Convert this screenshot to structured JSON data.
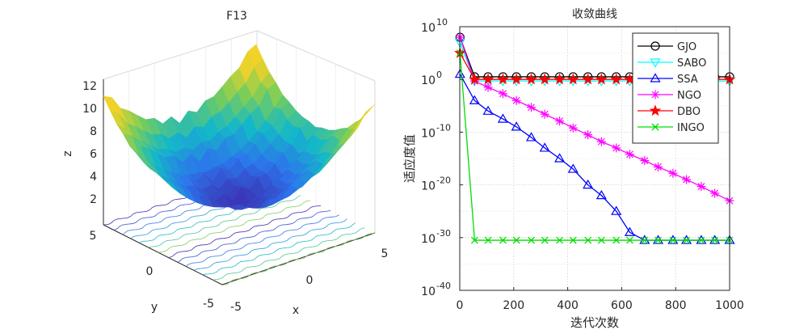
{
  "chart_data": [
    {
      "type": "surface",
      "title": "F13",
      "xlabel": "x",
      "ylabel": "y",
      "zlabel": "z",
      "xlim": [
        -5,
        5
      ],
      "ylim": [
        -5,
        5
      ],
      "zlim": [
        0,
        13
      ],
      "x_ticks": [
        "-5",
        "0",
        "5"
      ],
      "y_ticks": [
        "-5",
        "0",
        "5"
      ],
      "z_ticks": [
        "2",
        "4",
        "6",
        "8",
        "10",
        "12"
      ],
      "contour_projection": true
    },
    {
      "type": "line",
      "title": "收敛曲线",
      "xlabel": "迭代次数",
      "ylabel": "适应度值",
      "xlim": [
        0,
        1000
      ],
      "ylim_exponent": [
        -40,
        10
      ],
      "yscale": "log",
      "grid": true,
      "legend_position": "top-right",
      "x_ticks": [
        "0",
        "200",
        "400",
        "600",
        "800",
        "1000"
      ],
      "y_tick_base": "10",
      "y_tick_exponents": [
        "10",
        "0",
        "-10",
        "-20",
        "-30",
        "-40"
      ],
      "series": [
        {
          "name": "GJO",
          "color": "#000000",
          "marker": "circle",
          "x": [
            1,
            55,
            105,
            160,
            210,
            265,
            315,
            370,
            420,
            475,
            525,
            580,
            630,
            685,
            735,
            790,
            840,
            895,
            945,
            1000
          ],
          "log10_y": [
            8,
            0.5,
            0.5,
            0.5,
            0.5,
            0.5,
            0.5,
            0.5,
            0.5,
            0.5,
            0.5,
            0.5,
            0.5,
            0.5,
            0.5,
            0.5,
            0.5,
            0.5,
            0.5,
            0.5
          ]
        },
        {
          "name": "SABO",
          "color": "#00FFFF",
          "marker": "triangle-down",
          "x": [
            1,
            55,
            105,
            160,
            210,
            265,
            315,
            370,
            420,
            475,
            525,
            580,
            630,
            685,
            735,
            790,
            840,
            895,
            945,
            1000
          ],
          "log10_y": [
            7,
            -0.3,
            -0.3,
            -0.3,
            -0.3,
            -0.3,
            -0.3,
            -0.3,
            -0.3,
            -0.3,
            -0.3,
            -0.3,
            -0.3,
            -0.3,
            -0.3,
            -0.3,
            -0.3,
            -0.3,
            -0.3,
            -0.3
          ]
        },
        {
          "name": "SSA",
          "color": "#0000FF",
          "marker": "triangle-up",
          "x": [
            1,
            55,
            105,
            160,
            210,
            265,
            315,
            370,
            420,
            475,
            525,
            580,
            630,
            685,
            735,
            790,
            840,
            895,
            945,
            1000
          ],
          "log10_y": [
            1,
            -4,
            -6,
            -7.5,
            -9,
            -11,
            -13,
            -15,
            -17,
            -20,
            -22,
            -25,
            -29,
            -30.5,
            -30.5,
            -30.5,
            -30.5,
            -30.5,
            -30.5,
            -30.5
          ]
        },
        {
          "name": "NGO",
          "color": "#FF00FF",
          "marker": "asterisk",
          "x": [
            1,
            55,
            105,
            160,
            210,
            265,
            315,
            370,
            420,
            475,
            525,
            580,
            630,
            685,
            735,
            790,
            840,
            895,
            945,
            1000
          ],
          "log10_y": [
            8,
            -0.3,
            -1.5,
            -2.7,
            -4,
            -5.3,
            -6.6,
            -7.9,
            -9.2,
            -10.5,
            -11.8,
            -13,
            -14.2,
            -15.4,
            -16.6,
            -17.8,
            -19,
            -20.3,
            -21.6,
            -23
          ]
        },
        {
          "name": "DBO",
          "color": "#FF0000",
          "marker": "star",
          "x": [
            1,
            55,
            105,
            160,
            210,
            265,
            315,
            370,
            420,
            475,
            525,
            580,
            630,
            685,
            735,
            790,
            840,
            895,
            945,
            1000
          ],
          "log10_y": [
            5,
            0,
            0,
            0,
            0,
            0,
            0,
            0,
            0,
            0,
            0,
            0,
            0,
            0,
            0,
            0,
            0,
            0,
            0,
            0
          ]
        },
        {
          "name": "INGO",
          "color": "#00DD00",
          "marker": "x",
          "x": [
            1,
            55,
            105,
            160,
            210,
            265,
            315,
            370,
            420,
            475,
            525,
            580,
            630,
            685,
            735,
            790,
            840,
            895,
            945,
            1000
          ],
          "log10_y": [
            5,
            -30.5,
            -30.5,
            -30.5,
            -30.5,
            -30.5,
            -30.5,
            -30.5,
            -30.5,
            -30.5,
            -30.5,
            -30.5,
            -30.5,
            -30.5,
            -30.5,
            -30.5,
            -30.5,
            -30.5,
            -30.5,
            -30.5
          ]
        }
      ]
    }
  ]
}
